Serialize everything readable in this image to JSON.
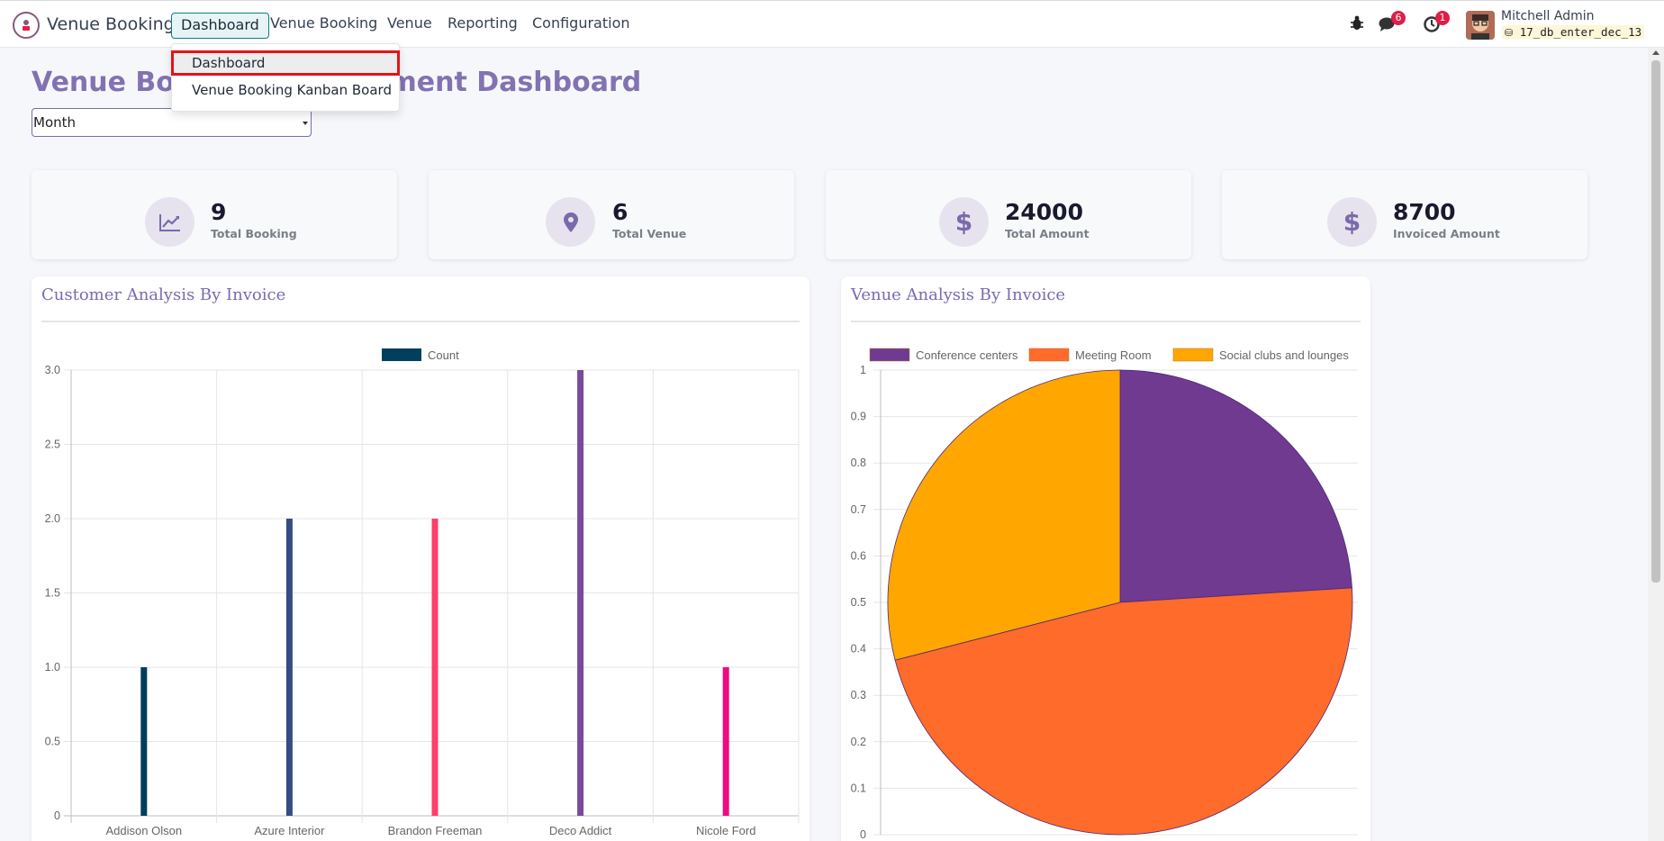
{
  "app": {
    "name": "Venue Booking"
  },
  "menu": [
    {
      "label": "Dashboard"
    },
    {
      "label": "Venue Booking"
    },
    {
      "label": "Venue"
    },
    {
      "label": "Reporting"
    },
    {
      "label": "Configuration"
    }
  ],
  "navbar": {
    "messages_badge": "6",
    "activity_badge": "1"
  },
  "user": {
    "name": "Mitchell Admin",
    "database": "17_db_enter_dec_13"
  },
  "dropdown": {
    "items": [
      {
        "label": "Dashboard"
      },
      {
        "label": "Venue Booking Kanban Board"
      }
    ]
  },
  "page": {
    "title": "Venue Booking Management Dashboard",
    "filter_value": "Month"
  },
  "kpis": [
    {
      "value": "9",
      "label": "Total Booking",
      "icon": "chart-line-icon"
    },
    {
      "value": "6",
      "label": "Total Venue",
      "icon": "map-marker-icon"
    },
    {
      "value": "24000",
      "label": "Total Amount",
      "icon": "dollar-icon"
    },
    {
      "value": "8700",
      "label": "Invoiced Amount",
      "icon": "dollar-icon"
    }
  ],
  "panels": {
    "customer_title": "Customer Analysis By Invoice",
    "venue_title": "Venue Analysis By Invoice"
  },
  "chart_data": [
    {
      "type": "bar",
      "title": "Customer Analysis By Invoice",
      "legend": [
        "Count"
      ],
      "categories": [
        "Addison Olson",
        "Azure Interior",
        "Brandon Freeman",
        "Deco Addict",
        "Nicole Ford"
      ],
      "values": [
        1,
        2,
        2,
        3,
        1
      ],
      "colors": [
        "#003f5c",
        "#374c80",
        "#ff3e6b",
        "#7a4a9a",
        "#f00a7f"
      ],
      "ylim": [
        0,
        3
      ],
      "yticks": [
        "0",
        "0.5",
        "1.0",
        "1.5",
        "2.0",
        "2.5",
        "3.0"
      ],
      "legend_color": "#003f5c"
    },
    {
      "type": "pie",
      "title": "Venue Analysis By Invoice",
      "labels": [
        "Conference centers",
        "Meeting Room",
        "Social clubs and lounges"
      ],
      "values": [
        24,
        47,
        29
      ],
      "colors": [
        "#6f3a90",
        "#ff6b2b",
        "#ffa600"
      ],
      "yticks": [
        "0",
        "0.1",
        "0.2",
        "0.3",
        "0.4",
        "0.5",
        "0.6",
        "0.7",
        "0.8",
        "0.9",
        "1"
      ]
    }
  ]
}
